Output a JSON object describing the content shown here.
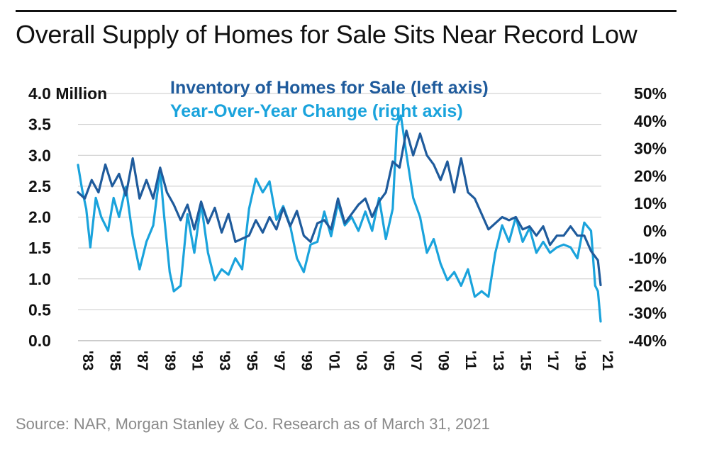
{
  "title": "Overall Supply of Homes for Sale Sits Near Record Low",
  "source": "Source: NAR, Morgan Stanley & Co. Research as of March 31, 2021",
  "colors": {
    "inventory": "#1f5b9c",
    "yoy": "#1aa3dc",
    "grid": "#c9c9c9",
    "text": "#111111"
  },
  "chart_data": {
    "type": "line",
    "legend": [
      "Inventory of Homes for Sale (left axis)",
      "Year-Over-Year Change (right axis)"
    ],
    "legend_placement": "top-center",
    "grid": true,
    "x_ticks": [
      "'83",
      "'85",
      "'87",
      "'89",
      "'91",
      "'93",
      "'95",
      "'97",
      "'99",
      "'01",
      "'03",
      "'05",
      "'07",
      "'09",
      "'11",
      "'13",
      "'15",
      "'17",
      "'19",
      "'21"
    ],
    "xlim": [
      1983,
      2021.25
    ],
    "y_left": {
      "ylim": [
        0,
        4
      ],
      "ticks": [
        "0.0",
        "0.5",
        "1.0",
        "1.5",
        "2.0",
        "2.5",
        "3.0",
        "3.5",
        "4.0 Million"
      ]
    },
    "y_right": {
      "ylim": [
        -40,
        50
      ],
      "ticks": [
        "-40%",
        "-30%",
        "-20%",
        "-10%",
        "0%",
        "10%",
        "20%",
        "30%",
        "40%",
        "50%"
      ]
    },
    "series": [
      {
        "name": "Inventory of Homes for Sale (left axis)",
        "axis": "left",
        "x": [
          1983.0,
          1983.5,
          1984.0,
          1984.5,
          1985.0,
          1985.5,
          1986.0,
          1986.5,
          1987.0,
          1987.5,
          1988.0,
          1988.5,
          1989.0,
          1989.5,
          1990.0,
          1990.5,
          1991.0,
          1991.5,
          1992.0,
          1992.5,
          1993.0,
          1993.5,
          1994.0,
          1994.5,
          1995.0,
          1995.5,
          1996.0,
          1996.5,
          1997.0,
          1997.5,
          1998.0,
          1998.5,
          1999.0,
          1999.5,
          2000.0,
          2000.5,
          2001.0,
          2001.5,
          2002.0,
          2002.5,
          2003.0,
          2003.5,
          2004.0,
          2004.5,
          2005.0,
          2005.5,
          2006.0,
          2006.5,
          2007.0,
          2007.5,
          2008.0,
          2008.5,
          2009.0,
          2009.5,
          2010.0,
          2010.5,
          2011.0,
          2011.5,
          2012.0,
          2012.5,
          2013.0,
          2013.5,
          2014.0,
          2014.5,
          2015.0,
          2015.5,
          2016.0,
          2016.5,
          2017.0,
          2017.5,
          2018.0,
          2018.5,
          2019.0,
          2019.5,
          2020.0,
          2020.5,
          2021.0,
          2021.2
        ],
        "values": [
          2.4,
          2.3,
          2.6,
          2.4,
          2.85,
          2.5,
          2.7,
          2.35,
          2.95,
          2.3,
          2.6,
          2.3,
          2.8,
          2.4,
          2.2,
          1.95,
          2.2,
          1.8,
          2.25,
          1.9,
          2.15,
          1.75,
          2.05,
          1.6,
          1.65,
          1.7,
          1.95,
          1.75,
          2.0,
          1.8,
          2.15,
          1.85,
          2.1,
          1.7,
          1.6,
          1.9,
          1.95,
          1.8,
          2.3,
          1.9,
          2.05,
          2.2,
          2.3,
          2.0,
          2.25,
          2.4,
          2.9,
          2.8,
          3.4,
          3.0,
          3.35,
          3.0,
          2.85,
          2.6,
          2.9,
          2.4,
          2.95,
          2.4,
          2.3,
          2.05,
          1.8,
          1.9,
          2.0,
          1.95,
          2.0,
          1.8,
          1.85,
          1.7,
          1.85,
          1.55,
          1.7,
          1.7,
          1.85,
          1.7,
          1.7,
          1.45,
          1.3,
          0.9
        ]
      },
      {
        "name": "Year-Over-Year Change (right axis)",
        "axis": "right",
        "x": [
          1983.0,
          1983.3,
          1983.6,
          1983.9,
          1984.3,
          1984.7,
          1985.2,
          1985.6,
          1986.0,
          1986.5,
          1987.0,
          1987.5,
          1988.0,
          1988.5,
          1989.0,
          1989.3,
          1989.7,
          1990.0,
          1990.5,
          1991.0,
          1991.5,
          1992.0,
          1992.5,
          1993.0,
          1993.5,
          1994.0,
          1994.5,
          1995.0,
          1995.5,
          1996.0,
          1996.5,
          1997.0,
          1997.5,
          1998.0,
          1998.5,
          1999.0,
          1999.5,
          2000.0,
          2000.5,
          2001.0,
          2001.5,
          2002.0,
          2002.5,
          2003.0,
          2003.5,
          2004.0,
          2004.5,
          2005.0,
          2005.5,
          2006.0,
          2006.3,
          2006.6,
          2007.0,
          2007.5,
          2008.0,
          2008.5,
          2009.0,
          2009.5,
          2010.0,
          2010.5,
          2011.0,
          2011.5,
          2012.0,
          2012.5,
          2013.0,
          2013.5,
          2014.0,
          2014.5,
          2015.0,
          2015.5,
          2016.0,
          2016.5,
          2017.0,
          2017.5,
          2018.0,
          2018.5,
          2019.0,
          2019.5,
          2020.0,
          2020.5,
          2020.8,
          2021.0,
          2021.2
        ],
        "values": [
          24,
          15,
          8,
          -6,
          12,
          5,
          0,
          12,
          5,
          16,
          -2,
          -14,
          -4,
          2,
          22,
          5,
          -15,
          -22,
          -20,
          6,
          -8,
          10,
          -8,
          -18,
          -14,
          -16,
          -10,
          -14,
          8,
          19,
          14,
          18,
          4,
          9,
          2,
          -10,
          -15,
          -5,
          -4,
          7,
          -2,
          10,
          2,
          5,
          0,
          7,
          0,
          12,
          -3,
          8,
          38,
          42,
          28,
          12,
          5,
          -8,
          -3,
          -12,
          -18,
          -15,
          -20,
          -14,
          -24,
          -22,
          -24,
          -8,
          2,
          -4,
          5,
          -4,
          1,
          -8,
          -4,
          -8,
          -6,
          -5,
          -6,
          -10,
          3,
          0,
          -20,
          -22,
          -33
        ]
      }
    ]
  }
}
